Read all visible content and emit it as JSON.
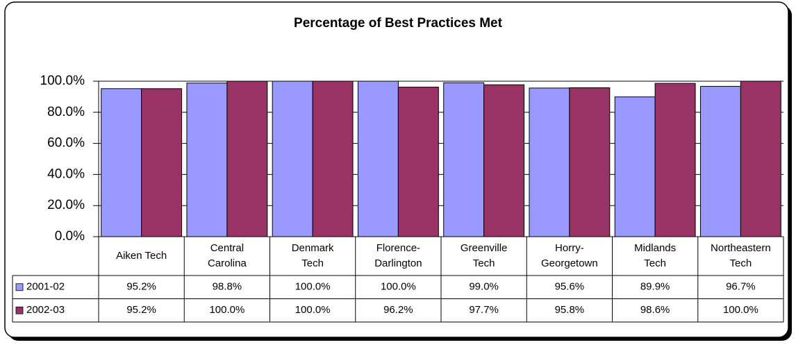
{
  "chart_data": {
    "type": "bar",
    "title": "Percentage of Best Practices Met",
    "categories": [
      [
        "Aiken Tech"
      ],
      [
        "Central",
        "Carolina"
      ],
      [
        "Denmark",
        "Tech"
      ],
      [
        "Florence-",
        "Darlington"
      ],
      [
        "Greenville",
        "Tech"
      ],
      [
        "Horry-",
        "Georgetown"
      ],
      [
        "Midlands",
        "Tech"
      ],
      [
        "Northeastern",
        "Tech"
      ]
    ],
    "series": [
      {
        "name": "2001-02",
        "color": "#9999ff",
        "values": [
          95.2,
          98.8,
          100.0,
          100.0,
          99.0,
          95.6,
          89.9,
          96.7
        ],
        "value_labels": [
          "95.2%",
          "98.8%",
          "100.0%",
          "100.0%",
          "99.0%",
          "95.6%",
          "89.9%",
          "96.7%"
        ]
      },
      {
        "name": "2002-03",
        "color": "#993366",
        "values": [
          95.2,
          100.0,
          100.0,
          96.2,
          97.7,
          95.8,
          98.6,
          100.0
        ],
        "value_labels": [
          "95.2%",
          "100.0%",
          "100.0%",
          "96.2%",
          "97.7%",
          "95.8%",
          "98.6%",
          "100.0%"
        ]
      }
    ],
    "ylim": [
      0,
      100
    ],
    "yticks": [
      {
        "value": 0,
        "label": "0.0%"
      },
      {
        "value": 20,
        "label": "20.0%"
      },
      {
        "value": 40,
        "label": "40.0%"
      },
      {
        "value": 60,
        "label": "60.0%"
      },
      {
        "value": 80,
        "label": "80.0%"
      },
      {
        "value": 100,
        "label": "100.0%"
      }
    ],
    "grid": true,
    "legend": "data-table"
  }
}
